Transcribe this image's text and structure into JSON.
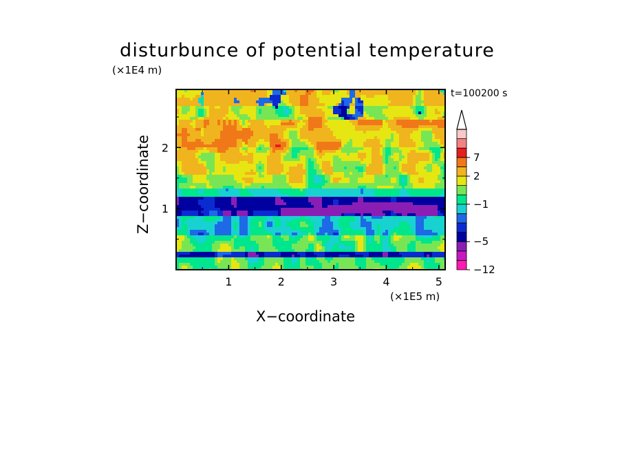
{
  "chart_data": {
    "type": "heatmap",
    "title": "disturbunce of potential temperature",
    "xlabel": "X−coordinate",
    "ylabel": "Z−coordinate",
    "x_scale_note": "(×1E5 m)",
    "y_scale_note": "(×1E4 m)",
    "time_label": "t=100200 s",
    "xlim": [
      0,
      5.12
    ],
    "ylim": [
      0,
      2.95
    ],
    "x_ticks": [
      1,
      2,
      3,
      4,
      5
    ],
    "x_tick_labels": [
      "1",
      "2",
      "3",
      "4",
      "5"
    ],
    "y_ticks": [
      1,
      2
    ],
    "y_tick_labels": [
      "1",
      "2"
    ],
    "colorbar": {
      "levels": [
        -12,
        -9,
        -7,
        -5,
        -4,
        -3,
        -2,
        -1,
        0,
        1,
        2,
        4,
        7,
        9,
        12
      ],
      "labeled_levels": [
        -12,
        -5,
        -1,
        2,
        7
      ],
      "tick_labels": [
        "−12",
        "−5",
        "−1",
        "2",
        "7"
      ],
      "colors": [
        "#ff18b4",
        "#c818c0",
        "#8a1eb4",
        "#0000a0",
        "#0b2bd2",
        "#1e69e6",
        "#18d2d2",
        "#00e68c",
        "#78e654",
        "#e6e612",
        "#f0b41e",
        "#f07818",
        "#e61e1e",
        "#f58282",
        "#fac8c8"
      ],
      "extend": "max",
      "extend_color": "#ffffff"
    },
    "field_bands": [
      {
        "z_range": [
          0.0,
          0.2
        ],
        "value": 0
      },
      {
        "z_range": [
          0.2,
          0.3
        ],
        "value": -4
      },
      {
        "z_range": [
          0.3,
          0.55
        ],
        "value": 0
      },
      {
        "z_range": [
          0.55,
          0.9
        ],
        "value": -1.5
      },
      {
        "z_range": [
          0.9,
          1.2
        ],
        "value": -4.5
      },
      {
        "z_range": [
          1.2,
          1.35
        ],
        "value": -1
      },
      {
        "z_range": [
          1.35,
          1.55
        ],
        "value": 0.5
      },
      {
        "z_range": [
          1.55,
          2.0
        ],
        "value": 1.5
      },
      {
        "z_range": [
          2.0,
          2.45
        ],
        "value": 2.5
      },
      {
        "z_range": [
          2.45,
          2.7
        ],
        "value": 1
      },
      {
        "z_range": [
          2.7,
          2.95
        ],
        "value": 2.5
      }
    ]
  }
}
